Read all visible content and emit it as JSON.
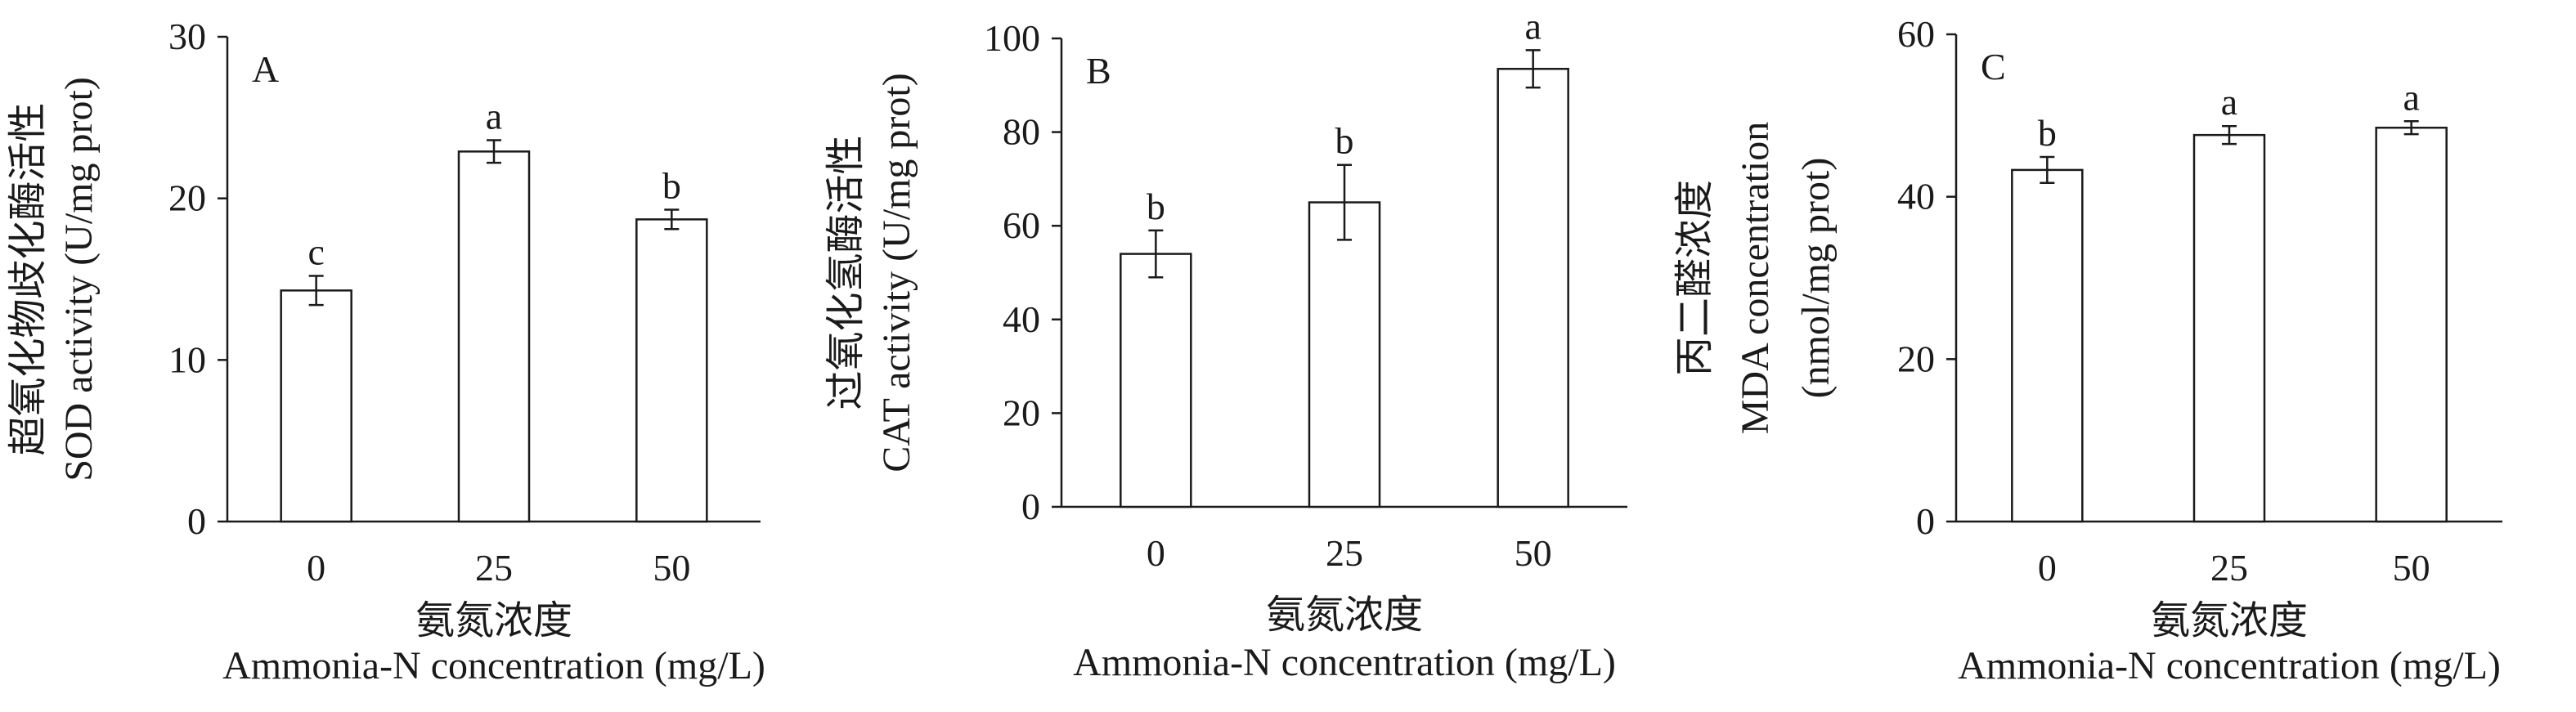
{
  "chart_data": [
    {
      "type": "bar",
      "panel_label": "A",
      "categories": [
        "0",
        "25",
        "50"
      ],
      "values": [
        14.3,
        22.9,
        18.7
      ],
      "errors": [
        0.9,
        0.7,
        0.6
      ],
      "significance": [
        "c",
        "a",
        "b"
      ],
      "ylabel_lines": [
        "超氧化物歧化酶活性",
        "SOD activity (U/mg prot)"
      ],
      "xlabel_lines": [
        "氨氮浓度",
        "Ammonia-N concentration (mg/L)"
      ],
      "ylim": [
        0,
        30
      ],
      "yticks": [
        0,
        10,
        20,
        30
      ],
      "grid": false,
      "legend": "none"
    },
    {
      "type": "bar",
      "panel_label": "B",
      "categories": [
        "0",
        "25",
        "50"
      ],
      "values": [
        54.0,
        65.0,
        93.5
      ],
      "errors": [
        5.0,
        8.0,
        4.0
      ],
      "significance": [
        "b",
        "b",
        "a"
      ],
      "ylabel_lines": [
        "过氧化氢酶活性",
        "CAT activity (U/mg prot)"
      ],
      "xlabel_lines": [
        "氨氮浓度",
        "Ammonia-N concentration (mg/L)"
      ],
      "ylim": [
        0,
        100
      ],
      "yticks": [
        0,
        20,
        40,
        60,
        80,
        100
      ],
      "grid": false,
      "legend": "none"
    },
    {
      "type": "bar",
      "panel_label": "C",
      "categories": [
        "0",
        "25",
        "50"
      ],
      "values": [
        43.3,
        47.6,
        48.5
      ],
      "errors": [
        1.6,
        1.1,
        0.8
      ],
      "significance": [
        "b",
        "a",
        "a"
      ],
      "ylabel_lines": [
        "丙二醛浓度",
        "MDA concentration",
        "(nmol/mg prot)"
      ],
      "xlabel_lines": [
        "氨氮浓度",
        "Ammonia-N concentration (mg/L)"
      ],
      "ylim": [
        0,
        60
      ],
      "yticks": [
        0,
        20,
        40,
        60
      ],
      "grid": false,
      "legend": "none"
    }
  ],
  "colors": {
    "bar_fill": "#ffffff",
    "stroke": "#1a1a1a",
    "text": "#1a1a1a"
  }
}
